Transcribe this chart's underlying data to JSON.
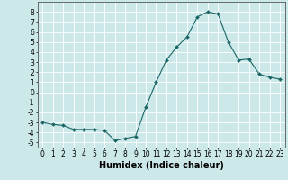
{
  "x": [
    0,
    1,
    2,
    3,
    4,
    5,
    6,
    7,
    8,
    9,
    10,
    11,
    12,
    13,
    14,
    15,
    16,
    17,
    18,
    19,
    20,
    21,
    22,
    23
  ],
  "y": [
    -3,
    -3.2,
    -3.3,
    -3.7,
    -3.7,
    -3.7,
    -3.8,
    -4.8,
    -4.6,
    -4.4,
    -1.5,
    1.0,
    3.2,
    4.5,
    5.5,
    7.5,
    8.0,
    7.8,
    5.0,
    3.2,
    3.3,
    1.8,
    1.5,
    1.3
  ],
  "xlabel": "Humidex (Indice chaleur)",
  "ylim": [
    -5.5,
    9
  ],
  "xlim": [
    -0.5,
    23.5
  ],
  "bg_color": "#cce8e8",
  "line_color": "#1a6666",
  "grid_color": "#ffffff",
  "tick_label_fontsize": 5.5,
  "xlabel_fontsize": 7,
  "yticks": [
    -5,
    -4,
    -3,
    -2,
    -1,
    0,
    1,
    2,
    3,
    4,
    5,
    6,
    7,
    8
  ],
  "xticks": [
    0,
    1,
    2,
    3,
    4,
    5,
    6,
    7,
    8,
    9,
    10,
    11,
    12,
    13,
    14,
    15,
    16,
    17,
    18,
    19,
    20,
    21,
    22,
    23
  ]
}
